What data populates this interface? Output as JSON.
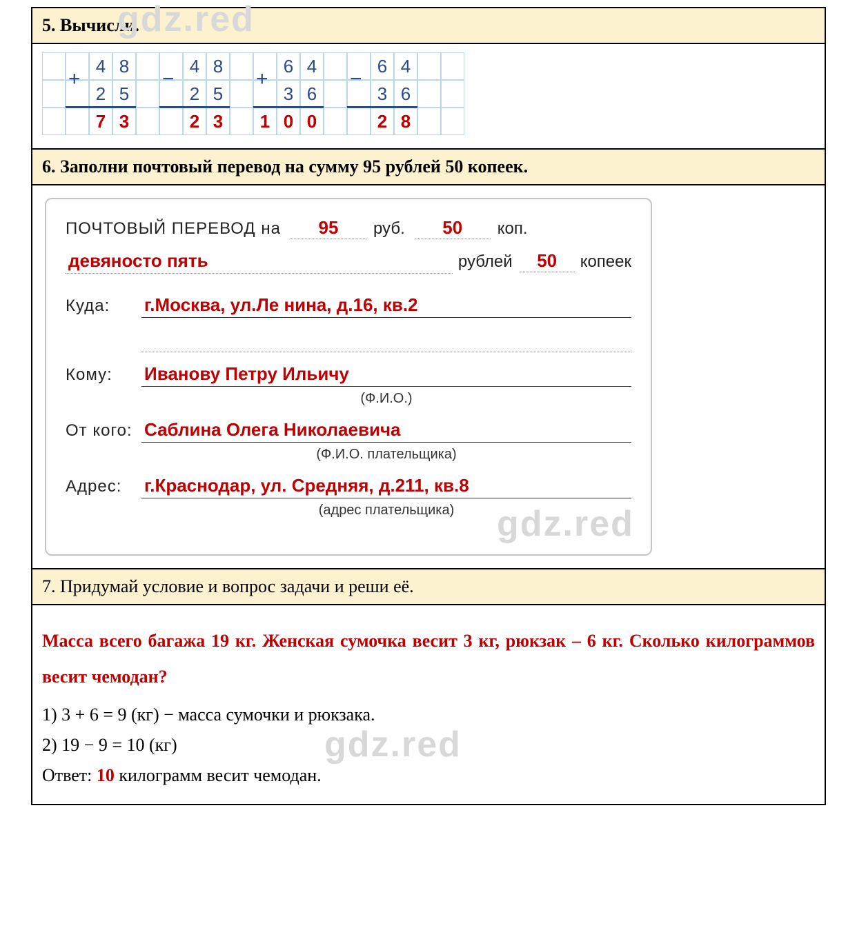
{
  "watermarks": {
    "text": "gdz.red"
  },
  "task5": {
    "title": "5. Вычисли.",
    "grid": {
      "cols": 18,
      "problems": [
        {
          "op": "+",
          "top": [
            "4",
            "8"
          ],
          "bot": [
            "2",
            "5"
          ],
          "ans": [
            "7",
            "3"
          ],
          "op_col": 1,
          "digit_cols": [
            2,
            3
          ],
          "ans_cols": [
            2,
            3
          ],
          "bar_from": 1,
          "bar_to": 3
        },
        {
          "op": "−",
          "top": [
            "4",
            "8"
          ],
          "bot": [
            "2",
            "5"
          ],
          "ans": [
            "2",
            "3"
          ],
          "op_col": 5,
          "digit_cols": [
            6,
            7
          ],
          "ans_cols": [
            6,
            7
          ],
          "bar_from": 5,
          "bar_to": 7
        },
        {
          "op": "+",
          "top": [
            "6",
            "4"
          ],
          "bot": [
            "3",
            "6"
          ],
          "ans": [
            "1",
            "0",
            "0"
          ],
          "op_col": 9,
          "digit_cols": [
            10,
            11
          ],
          "ans_cols": [
            9,
            10,
            11
          ],
          "bar_from": 9,
          "bar_to": 11
        },
        {
          "op": "−",
          "top": [
            "6",
            "4"
          ],
          "bot": [
            "3",
            "6"
          ],
          "ans": [
            "2",
            "8"
          ],
          "op_col": 13,
          "digit_cols": [
            14,
            15
          ],
          "ans_cols": [
            14,
            15
          ],
          "bar_from": 13,
          "bar_to": 15
        }
      ]
    }
  },
  "task6": {
    "title": "6. Заполни почтовый перевод на сумму 95 рублей 50 копеек.",
    "form": {
      "header_label": "ПОЧТОВЫЙ  ПЕРЕВОД  на",
      "rub_value": "95",
      "rub_unit": "руб.",
      "kop_value": "50",
      "kop_unit": "коп.",
      "words_rub": "девяносто пять",
      "words_rub_unit": "рублей",
      "words_kop": "50",
      "words_kop_unit": "копеек",
      "kuda_label": "Куда:",
      "kuda_value": "г.Москва, ул.Ле нина, д.16, кв.2",
      "komu_label": "Кому:",
      "komu_value": "Иванову Петру Ильичу",
      "komu_sub": "(Ф.И.О.)",
      "otkogo_label": "От  кого:",
      "otkogo_value": "Саблина Олега  Николаевича",
      "otkogo_sub": "(Ф.И.О.  плательщика)",
      "adres_label": "Адрес:",
      "adres_value": "г.Краснодар, ул. Средняя, д.211, кв.8",
      "adres_sub": "(адрес  плательщика)"
    }
  },
  "task7": {
    "title": "7. Придумай условие и вопрос задачи и реши её.",
    "problem_red": "Масса всего багажа 19 кг. Женская сумочка весит 3 кг, рюкзак – 6 кг. Сколько килограммов весит чемодан?",
    "step1": "1) 3 + 6 = 9 (кг) − масса сумочки и рюкзака.",
    "step2": "2) 19 − 9 = 10 (кг)",
    "answer_label": "Ответ: ",
    "answer_value": "10",
    "answer_rest": " килограмм весит чемодан."
  }
}
